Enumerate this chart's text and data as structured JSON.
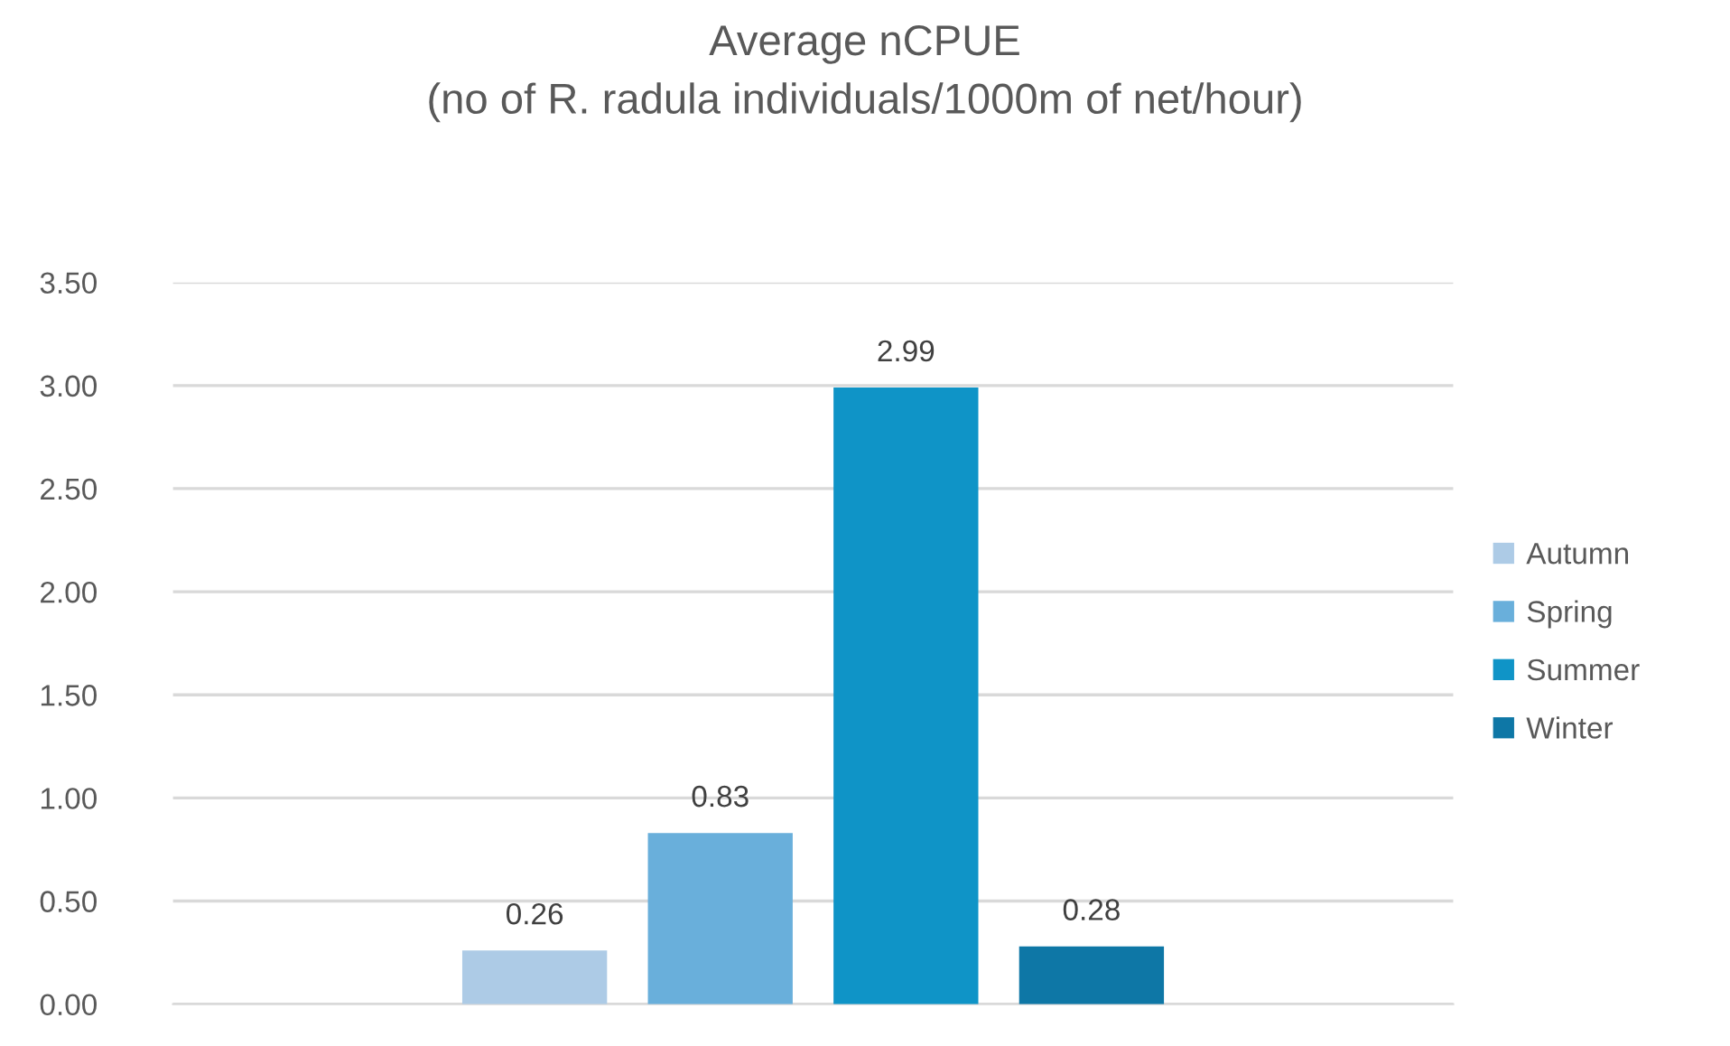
{
  "chart_data": {
    "type": "bar",
    "title": "Average nCPUE\n(no of R. radula individuals/1000m of net/hour)",
    "categories": [
      null
    ],
    "series": [
      {
        "name": "Autumn",
        "color": "#adcbe6",
        "values": [
          0.26
        ]
      },
      {
        "name": "Spring",
        "color": "#69afdb",
        "values": [
          0.83
        ]
      },
      {
        "name": "Summer",
        "color": "#0f94c7",
        "values": [
          2.99
        ]
      },
      {
        "name": "Winter",
        "color": "#0e77a6",
        "values": [
          0.28
        ]
      }
    ],
    "ylim": [
      0,
      3.5
    ],
    "yticks": [
      {
        "value": 0,
        "label": "0.00"
      },
      {
        "value": 0.5,
        "label": "0.50"
      },
      {
        "value": 1,
        "label": "1.00"
      },
      {
        "value": 1.5,
        "label": "1.50"
      },
      {
        "value": 2,
        "label": "2.00"
      },
      {
        "value": 2.5,
        "label": "2.50"
      },
      {
        "value": 3,
        "label": "3.00"
      },
      {
        "value": 3.5,
        "label": "3.50"
      }
    ],
    "grid": "y",
    "legend": "right",
    "data_labels": true
  }
}
